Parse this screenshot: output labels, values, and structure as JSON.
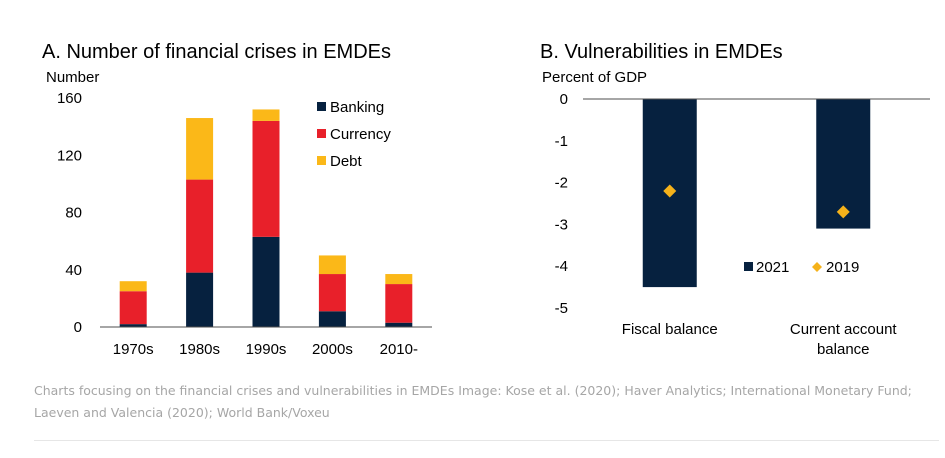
{
  "colors": {
    "navy": "#06213f",
    "red": "#e8202a",
    "yellow": "#fbb818",
    "diamond": "#f5b21a",
    "axis": "#4d4d4d"
  },
  "chart_data": [
    {
      "type": "bar",
      "stacked": true,
      "title": "A. Number of financial crises in EMDEs",
      "ylabel": "Number",
      "categories": [
        "1970s",
        "1980s",
        "1990s",
        "2000s",
        "2010-"
      ],
      "series": [
        {
          "name": "Banking",
          "values": [
            2,
            38,
            63,
            11,
            3
          ]
        },
        {
          "name": "Currency",
          "values": [
            23,
            65,
            81,
            26,
            27
          ]
        },
        {
          "name": "Debt",
          "values": [
            7,
            43,
            8,
            13,
            7
          ]
        }
      ],
      "ylim": [
        0,
        160
      ],
      "yticks": [
        0,
        40,
        80,
        120,
        160
      ],
      "legend": "top-right"
    },
    {
      "type": "bar",
      "title": "B. Vulnerabilities in EMDEs",
      "ylabel": "Percent of GDP",
      "categories": [
        "Fiscal balance",
        "Current account balance"
      ],
      "series": [
        {
          "name": "2021",
          "type": "bar",
          "values": [
            -4.5,
            -3.1
          ]
        },
        {
          "name": "2019",
          "type": "diamond",
          "values": [
            -2.2,
            -2.7
          ]
        }
      ],
      "ylim": [
        -5,
        0
      ],
      "yticks": [
        0,
        -1,
        -2,
        -3,
        -4,
        -5
      ],
      "legend": "bottom-right"
    }
  ],
  "caption": {
    "line1": "Charts focusing on the financial crises and vulnerabilities in EMDEs Image: Kose et al. (2020); Haver Analytics; International Monetary Fund;",
    "line2": "Laeven and Valencia (2020); World Bank/Voxeu"
  }
}
